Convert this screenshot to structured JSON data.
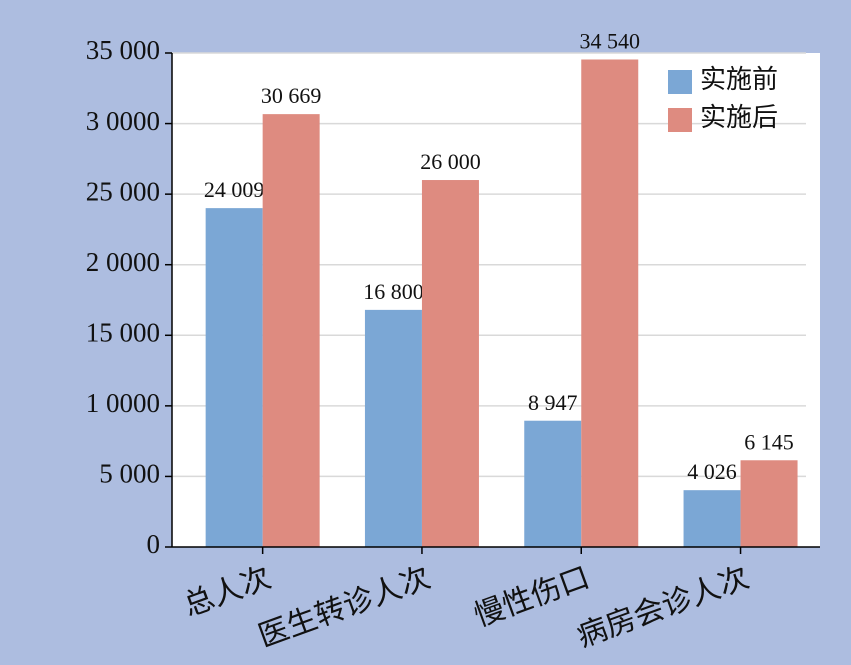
{
  "chart_data": {
    "type": "bar",
    "categories": [
      "总人次",
      "医生转诊人次",
      "慢性伤口",
      "病房会诊人次"
    ],
    "series": [
      {
        "name": "实施前",
        "color": "#7ba7d5",
        "values": [
          24009,
          16800,
          8947,
          4026
        ],
        "value_labels": [
          "24 009",
          "16 800",
          "8 947",
          "4 026"
        ]
      },
      {
        "name": "实施后",
        "color": "#de8b80",
        "values": [
          30669,
          26000,
          34540,
          6145
        ],
        "value_labels": [
          "30 669",
          "26 000",
          "34 540",
          "6 145"
        ]
      }
    ],
    "ylim": [
      0,
      35000
    ],
    "yticks": [
      0,
      {
        "value": 5000,
        "label": "5 000"
      },
      {
        "value": 10000,
        "label": "1 0000"
      },
      {
        "value": 15000,
        "label": "15 000"
      },
      {
        "value": 20000,
        "label": "2 0000"
      },
      {
        "value": 25000,
        "label": "25 000"
      },
      {
        "value": 30000,
        "label": "3 0000"
      },
      {
        "value": 35000,
        "label": "35 000"
      }
    ],
    "grid": true,
    "legend": "top-right"
  }
}
